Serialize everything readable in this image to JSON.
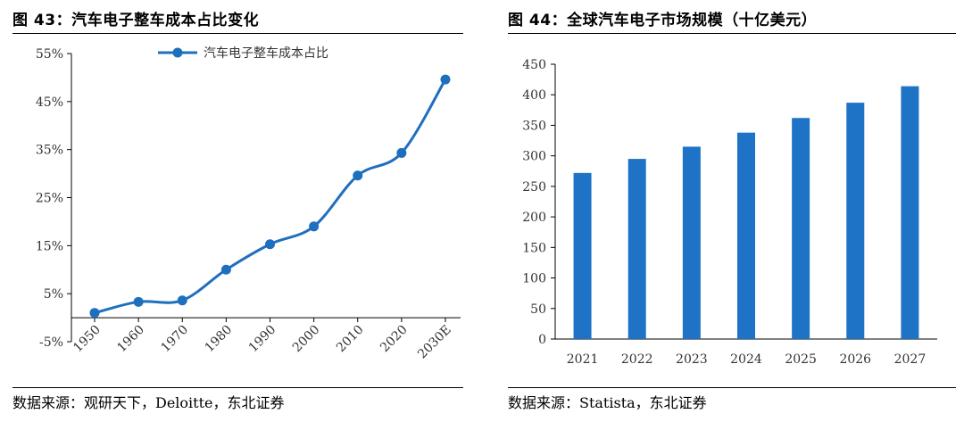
{
  "left": {
    "title": "图 43：汽车电子整车成本占比变化",
    "source": "数据来源：观研天下，Deloitte，东北证券"
  },
  "right": {
    "title": "图 44：全球汽车电子市场规模（十亿美元）",
    "source": "数据来源：Statista，东北证券"
  },
  "colors": {
    "line": "#1f6fbf",
    "bar": "#1f73c6",
    "axis": "#000000",
    "tick_text": "#333333"
  },
  "chart_data": [
    {
      "type": "line",
      "title": "",
      "x": [
        "1950",
        "1960",
        "1970",
        "1980",
        "1990",
        "2000",
        "2010",
        "2020",
        "2030E"
      ],
      "series": [
        {
          "name": "汽车电子整车成本占比",
          "values": [
            1,
            3.3,
            3.6,
            10,
            15.3,
            19,
            29.6,
            34.3,
            49.6
          ]
        }
      ],
      "y_ticks": [
        "-5%",
        "5%",
        "15%",
        "25%",
        "35%",
        "45%",
        "55%"
      ],
      "ylim": [
        -5,
        55
      ],
      "xlabel": "",
      "ylabel": "",
      "grid": false,
      "legend": "top",
      "x_tick_rotation": "rotated -45°"
    },
    {
      "type": "bar",
      "title": "",
      "categories": [
        "2021",
        "2022",
        "2023",
        "2024",
        "2025",
        "2026",
        "2027"
      ],
      "values": [
        272,
        295,
        315,
        338,
        362,
        387,
        414
      ],
      "y_ticks": [
        "0",
        "50",
        "100",
        "150",
        "200",
        "250",
        "300",
        "350",
        "400",
        "450"
      ],
      "ylim": [
        0,
        450
      ],
      "xlabel": "",
      "ylabel": "",
      "grid": false,
      "legend": "none"
    }
  ]
}
